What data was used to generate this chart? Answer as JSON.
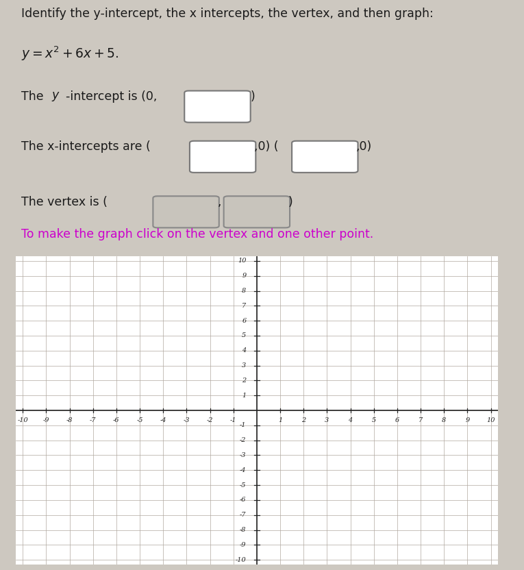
{
  "title_line1": "Identify the y-intercept, the x intercepts, the vertex, and then graph:",
  "equation_display": "y = x^2 + 6x + 5.",
  "y_intercept_label": "The y-intercept is (0,",
  "x_intercepts_label": "The x-intercepts are (",
  "vertex_label": "The vertex is (",
  "instruction": "To make the graph click on the vertex and one other point.",
  "instruction_color": "#cc00cc",
  "bg_color": "#cdc8c0",
  "text_color": "#1a1a1a",
  "grid_color": "#b0a8a0",
  "axis_color": "#222222",
  "x_min": -10,
  "x_max": 10,
  "y_min": -10,
  "y_max": 10,
  "fig_width": 7.65,
  "fig_height": 8.32
}
